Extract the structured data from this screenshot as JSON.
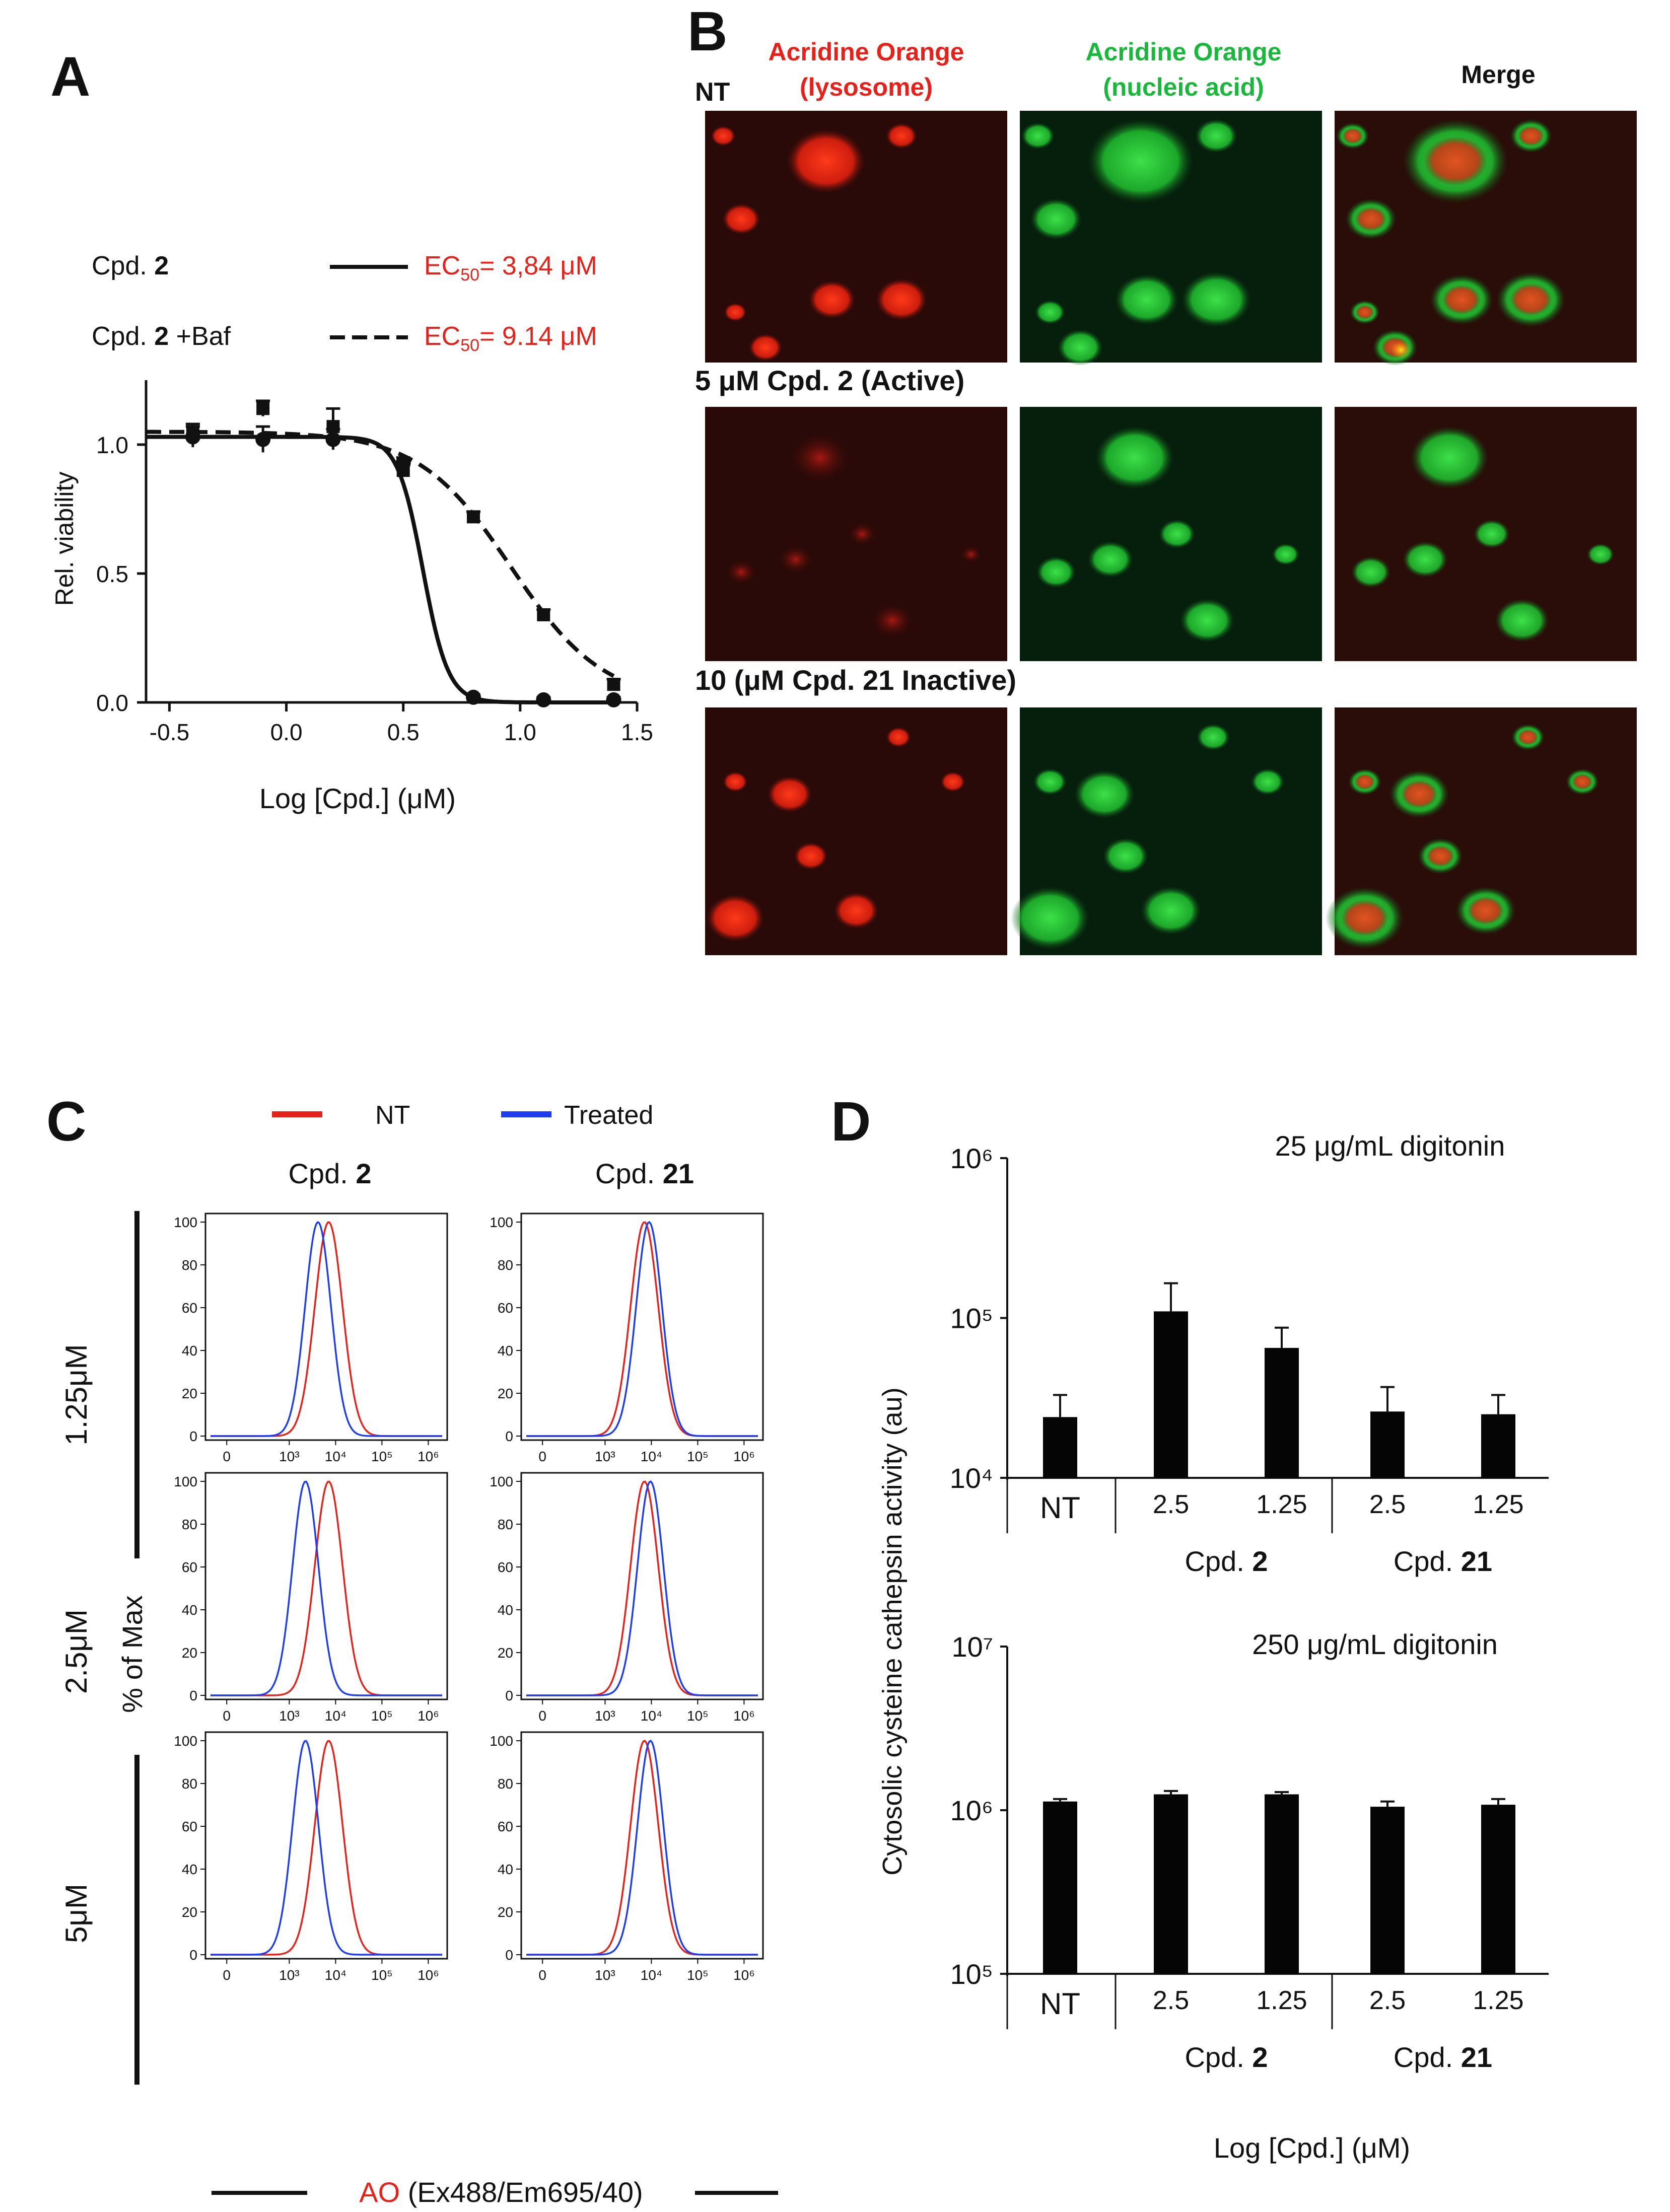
{
  "panels": {
    "a": {
      "letter": "A",
      "legend": [
        {
          "label": "Cpd. ",
          "bold": "2",
          "suffix": "",
          "style": "solid",
          "ec_prefix": "EC",
          "ec_sub": "50",
          "ec_value": "= 3,84 μM"
        },
        {
          "label": "Cpd. ",
          "bold": "2",
          "suffix": " +Baf",
          "style": "dashed",
          "ec_prefix": "EC",
          "ec_sub": "50",
          "ec_value": "= 9.14 μM"
        }
      ]
    },
    "b": {
      "letter": "B",
      "row_labels": [
        "NT",
        "5 μM Cpd. 2  (Active)",
        "10 (μM Cpd. 21 Inactive)"
      ],
      "col_headers": [
        {
          "line1": "Acridine Orange",
          "line2": "(lysosome)",
          "color": "#e8201a"
        },
        {
          "line1": "Acridine Orange",
          "line2": "(nucleic acid)",
          "color": "#18b83a"
        },
        {
          "line1": "Merge",
          "line2": "",
          "color": "#111111"
        }
      ]
    },
    "c": {
      "letter": "C",
      "legend": [
        {
          "name": "NT",
          "color": "#e8201a"
        },
        {
          "name": "Treated",
          "color": "#1f3df0"
        }
      ],
      "col_titles": [
        {
          "prefix": "Cpd. ",
          "bold": "2"
        },
        {
          "prefix": "Cpd. ",
          "bold": "21"
        }
      ],
      "row_labels": [
        "1.25μM",
        "2.5μM",
        "5μM"
      ],
      "ylabel": "% of Max",
      "xlabel_red": "AO",
      "xlabel_rest": " (Ex488/Em695/40)",
      "yticks": [
        "0",
        "20",
        "40",
        "60",
        "80",
        "100"
      ],
      "xticks": [
        "0",
        "10³",
        "10⁴",
        "10⁵",
        "10⁶"
      ]
    },
    "d": {
      "letter": "D",
      "ylabel": "Cytosolic cysteine cathepsin activity (au)",
      "xlabel": "Log [Cpd.] (μM)",
      "group_labels": [
        {
          "prefix": "Cpd. ",
          "bold": "2"
        },
        {
          "prefix": "Cpd. ",
          "bold": "21"
        }
      ]
    }
  },
  "chart_data": [
    {
      "id": "A",
      "type": "line",
      "title": "",
      "xlabel": "Log [Cpd.] (μM)",
      "ylabel": "Rel. viability",
      "xlim": [
        -0.6,
        1.5
      ],
      "ylim": [
        0,
        1.25
      ],
      "xticks": [
        "-0.5",
        "0.0",
        "0.5",
        "1.0",
        "1.5"
      ],
      "yticks": [
        "0.0",
        "0.5",
        "1.0"
      ],
      "series": [
        {
          "name": "Cpd. 2",
          "style": "solid",
          "marker": "circle",
          "x": [
            -0.4,
            -0.1,
            0.2,
            0.5,
            0.8,
            1.1,
            1.4
          ],
          "y": [
            1.03,
            1.02,
            1.02,
            0.93,
            0.02,
            0.01,
            0.01
          ],
          "err": [
            0.04,
            0.05,
            0.04,
            0.02,
            0.01,
            0.01,
            0.01
          ],
          "fit": {
            "top": 1.03,
            "bottom": 0.0,
            "logEC50": 0.584,
            "hill": 8.0
          }
        },
        {
          "name": "Cpd. 2 +Baf",
          "style": "dashed",
          "marker": "square",
          "x": [
            -0.4,
            -0.1,
            0.2,
            0.5,
            0.8,
            1.1,
            1.4
          ],
          "y": [
            1.04,
            1.14,
            1.07,
            0.9,
            0.72,
            0.34,
            0.07
          ],
          "err": [
            0.04,
            0.03,
            0.07,
            0.02,
            0.02,
            0.02,
            0.02
          ],
          "fit": {
            "top": 1.05,
            "bottom": 0.0,
            "logEC50": 0.961,
            "hill": 2.2
          }
        }
      ]
    },
    {
      "id": "C",
      "type": "area",
      "rows": [
        "1.25μM",
        "2.5μM",
        "5μM"
      ],
      "cols": [
        "Cpd. 2",
        "Cpd. 21"
      ],
      "xscale": "log",
      "ylim": [
        0,
        100
      ],
      "series_names": [
        "NT",
        "Treated"
      ],
      "peak_log10": [
        [
          {
            "NT": 3.85,
            "Treated": 3.62
          },
          {
            "NT": 3.85,
            "Treated": 3.95
          }
        ],
        [
          {
            "NT": 3.85,
            "Treated": 3.35
          },
          {
            "NT": 3.85,
            "Treated": 3.98
          }
        ],
        [
          {
            "NT": 3.85,
            "Treated": 3.35
          },
          {
            "NT": 3.85,
            "Treated": 3.98
          }
        ]
      ]
    },
    {
      "id": "D-top",
      "type": "bar",
      "title": "25 μg/mL digitonin",
      "yscale": "log",
      "ylim": [
        10000,
        1000000
      ],
      "yticks": [
        "10⁴",
        "10⁵",
        "10⁶"
      ],
      "categories": [
        "NT",
        "2.5",
        "1.25",
        "2.5",
        "1.25"
      ],
      "groups": [
        {
          "label": "Cpd. 2",
          "categories": [
            1,
            2
          ]
        },
        {
          "label": "Cpd. 21",
          "categories": [
            3,
            4
          ]
        }
      ],
      "values": [
        24000,
        110000,
        65000,
        26000,
        25000
      ],
      "errors": [
        9000,
        55000,
        22000,
        11000,
        8000
      ]
    },
    {
      "id": "D-bottom",
      "type": "bar",
      "title": "250 μg/mL digitonin",
      "yscale": "log",
      "ylim": [
        100000,
        10000000
      ],
      "yticks": [
        "10⁵",
        "10⁶",
        "10⁷"
      ],
      "categories": [
        "NT",
        "2.5",
        "1.25",
        "2.5",
        "1.25"
      ],
      "groups": [
        {
          "label": "Cpd. 2",
          "categories": [
            1,
            2
          ]
        },
        {
          "label": "Cpd. 21",
          "categories": [
            3,
            4
          ]
        }
      ],
      "values": [
        1130000,
        1250000,
        1250000,
        1050000,
        1080000
      ],
      "errors": [
        40000,
        60000,
        40000,
        80000,
        90000
      ]
    }
  ]
}
